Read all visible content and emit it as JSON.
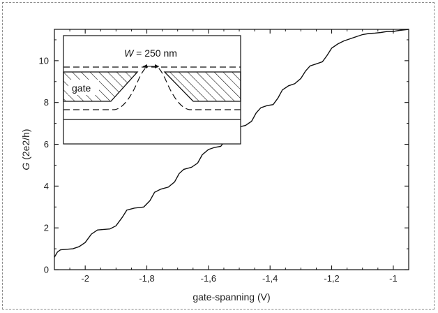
{
  "chart_data": {
    "type": "line",
    "xlabel": "gate-spanning (V)",
    "ylabel_italic": "G",
    "ylabel_rest": " (2e2/h)",
    "xlim": [
      -2.1,
      -0.95
    ],
    "ylim": [
      0,
      11.5
    ],
    "x_ticks": [
      -2,
      -1.8,
      -1.6,
      -1.4,
      -1.2,
      -1
    ],
    "x_tick_labels": [
      "-2",
      "-1,8",
      "-1,6",
      "-1,4",
      "-1,2",
      "-1"
    ],
    "y_ticks": [
      0,
      2,
      4,
      6,
      8,
      10
    ],
    "y_tick_labels": [
      "0",
      "2",
      "4",
      "6",
      "8",
      "10"
    ],
    "grid": false,
    "series": [
      {
        "points": [
          [
            -2.1,
            0.6
          ],
          [
            -2.09,
            0.85
          ],
          [
            -2.08,
            0.95
          ],
          [
            -2.04,
            1.0
          ],
          [
            -2.02,
            1.1
          ],
          [
            -2.0,
            1.3
          ],
          [
            -1.98,
            1.7
          ],
          [
            -1.96,
            1.9
          ],
          [
            -1.92,
            1.95
          ],
          [
            -1.9,
            2.1
          ],
          [
            -1.88,
            2.5
          ],
          [
            -1.865,
            2.85
          ],
          [
            -1.84,
            2.95
          ],
          [
            -1.81,
            3.0
          ],
          [
            -1.79,
            3.3
          ],
          [
            -1.775,
            3.7
          ],
          [
            -1.755,
            3.85
          ],
          [
            -1.73,
            3.95
          ],
          [
            -1.71,
            4.2
          ],
          [
            -1.695,
            4.6
          ],
          [
            -1.68,
            4.8
          ],
          [
            -1.655,
            4.9
          ],
          [
            -1.635,
            5.1
          ],
          [
            -1.62,
            5.5
          ],
          [
            -1.6,
            5.75
          ],
          [
            -1.58,
            5.85
          ],
          [
            -1.56,
            5.9
          ],
          [
            -1.545,
            6.2
          ],
          [
            -1.53,
            6.6
          ],
          [
            -1.51,
            6.8
          ],
          [
            -1.48,
            6.9
          ],
          [
            -1.46,
            7.1
          ],
          [
            -1.445,
            7.5
          ],
          [
            -1.43,
            7.75
          ],
          [
            -1.41,
            7.85
          ],
          [
            -1.39,
            7.9
          ],
          [
            -1.375,
            8.2
          ],
          [
            -1.36,
            8.6
          ],
          [
            -1.34,
            8.8
          ],
          [
            -1.32,
            8.9
          ],
          [
            -1.3,
            9.15
          ],
          [
            -1.285,
            9.5
          ],
          [
            -1.27,
            9.75
          ],
          [
            -1.25,
            9.85
          ],
          [
            -1.23,
            9.95
          ],
          [
            -1.215,
            10.25
          ],
          [
            -1.2,
            10.6
          ],
          [
            -1.18,
            10.8
          ],
          [
            -1.16,
            10.95
          ],
          [
            -1.14,
            11.05
          ],
          [
            -1.12,
            11.15
          ],
          [
            -1.1,
            11.25
          ],
          [
            -1.08,
            11.3
          ],
          [
            -1.06,
            11.32
          ],
          [
            -1.04,
            11.35
          ],
          [
            -1.02,
            11.4
          ],
          [
            -1.0,
            11.4
          ],
          [
            -0.98,
            11.45
          ],
          [
            -0.95,
            11.5
          ]
        ]
      }
    ]
  },
  "inset": {
    "width_label_italic": "W",
    "width_label_rest": " = 250 nm",
    "gate_label": "gate"
  }
}
